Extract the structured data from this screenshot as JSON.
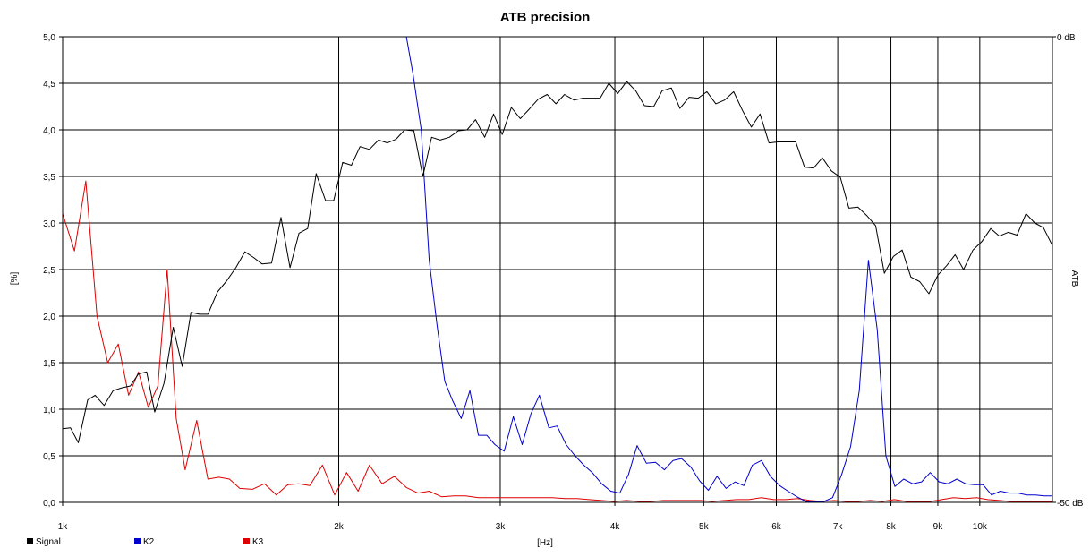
{
  "chart_data": {
    "type": "line",
    "title": "ATB precision",
    "xlabel": "[Hz]",
    "ylabel": "[%]",
    "y2label": "ATB",
    "x_scale": "log",
    "xlim": [
      1000,
      12000
    ],
    "ylim": [
      0,
      5
    ],
    "y2lim": [
      -50,
      0
    ],
    "y2_unit": "dB",
    "grid": true,
    "legend_position": "bottom-left",
    "x_ticks": [
      {
        "value": 1000,
        "label": "1k"
      },
      {
        "value": 2000,
        "label": "2k"
      },
      {
        "value": 3000,
        "label": "3k"
      },
      {
        "value": 4000,
        "label": "4k"
      },
      {
        "value": 5000,
        "label": "5k"
      },
      {
        "value": 6000,
        "label": "6k"
      },
      {
        "value": 7000,
        "label": "7k"
      },
      {
        "value": 8000,
        "label": "8k"
      },
      {
        "value": 9000,
        "label": "9k"
      },
      {
        "value": 10000,
        "label": "10k"
      }
    ],
    "y_ticks": [
      {
        "value": 5.0,
        "label": "5,0"
      },
      {
        "value": 4.5,
        "label": "4,5"
      },
      {
        "value": 4.0,
        "label": "4,0"
      },
      {
        "value": 3.5,
        "label": "3,5"
      },
      {
        "value": 3.0,
        "label": "3,0"
      },
      {
        "value": 2.5,
        "label": "2,5"
      },
      {
        "value": 2.0,
        "label": "2,0"
      },
      {
        "value": 1.5,
        "label": "1,5"
      },
      {
        "value": 1.0,
        "label": "1,0"
      },
      {
        "value": 0.5,
        "label": "0,5"
      },
      {
        "value": 0.0,
        "label": "0,0"
      }
    ],
    "y2_ticks": [
      {
        "value": 0,
        "label": "0 dB"
      },
      {
        "value": -50,
        "label": "-50 dB"
      }
    ],
    "series": [
      {
        "name": "Signal",
        "color": "#000000",
        "axis": "right",
        "x": [
          1000,
          1020,
          1040,
          1065,
          1085,
          1110,
          1135,
          1160,
          1185,
          1210,
          1235,
          1260,
          1290,
          1320,
          1350,
          1380,
          1410,
          1440,
          1475,
          1510,
          1545,
          1580,
          1615,
          1650,
          1690,
          1730,
          1770,
          1810,
          1850,
          1890,
          1935,
          1975,
          2020,
          2065,
          2110,
          2160,
          2210,
          2260,
          2310,
          2360,
          2415,
          2470,
          2525,
          2580,
          2640,
          2700,
          2760,
          2820,
          2885,
          2950,
          3015,
          3085,
          3155,
          3225,
          3300,
          3375,
          3450,
          3525,
          3610,
          3690,
          3770,
          3855,
          3940,
          4030,
          4120,
          4215,
          4310,
          4410,
          4505,
          4610,
          4710,
          4820,
          4930,
          5040,
          5155,
          5270,
          5390,
          5510,
          5635,
          5760,
          5890,
          6025,
          6160,
          6300,
          6440,
          6590,
          6735,
          6890,
          7045,
          7200,
          7365,
          7530,
          7700,
          7870,
          8050,
          8230,
          8410,
          8600,
          8800,
          9000,
          9200,
          9400,
          9600,
          9830,
          10050,
          10280,
          10500,
          10740,
          10980,
          11230,
          11480,
          11730,
          11980
        ],
        "y": [
          -42.1,
          -42.0,
          -43.6,
          -39.0,
          -38.5,
          -39.6,
          -38.0,
          -37.7,
          -37.5,
          -36.2,
          -36.0,
          -40.3,
          -37.2,
          -31.2,
          -35.4,
          -29.6,
          -29.8,
          -29.8,
          -27.4,
          -26.2,
          -24.8,
          -23.1,
          -23.7,
          -24.4,
          -24.3,
          -19.4,
          -24.8,
          -21.1,
          -20.6,
          -14.7,
          -17.6,
          -17.6,
          -13.5,
          -13.8,
          -11.8,
          -12.1,
          -11.1,
          -11.4,
          -11.0,
          -10.0,
          -10.1,
          -15.0,
          -10.8,
          -11.1,
          -10.8,
          -10.1,
          -10.0,
          -8.9,
          -10.8,
          -8.3,
          -10.5,
          -7.6,
          -8.8,
          -7.8,
          -6.7,
          -6.2,
          -7.2,
          -6.2,
          -6.8,
          -6.6,
          -6.6,
          -6.6,
          -5.0,
          -6.1,
          -4.8,
          -5.8,
          -7.4,
          -7.5,
          -5.8,
          -5.5,
          -7.7,
          -6.5,
          -6.6,
          -5.9,
          -7.2,
          -6.8,
          -5.9,
          -7.9,
          -9.7,
          -8.3,
          -11.4,
          -11.3,
          -11.3,
          -11.3,
          -14.0,
          -14.1,
          -13.0,
          -14.4,
          -15.1,
          -18.4,
          -18.3,
          -19.2,
          -20.3,
          -25.4,
          -23.6,
          -22.9,
          -25.8,
          -26.3,
          -27.6,
          -25.6,
          -24.6,
          -23.4,
          -25.0,
          -22.9,
          -22.0,
          -20.6,
          -21.4,
          -21.0,
          -21.3,
          -19.0,
          -20.0,
          -20.5,
          -22.3
        ]
      },
      {
        "name": "K2",
        "color": "#0000cc",
        "axis": "left",
        "x": [
          2370,
          2410,
          2460,
          2510,
          2560,
          2610,
          2660,
          2720,
          2780,
          2840,
          2900,
          2960,
          3030,
          3100,
          3170,
          3240,
          3310,
          3390,
          3460,
          3540,
          3620,
          3700,
          3780,
          3870,
          3960,
          4050,
          4140,
          4230,
          4330,
          4430,
          4530,
          4630,
          4730,
          4840,
          4950,
          5060,
          5170,
          5290,
          5410,
          5530,
          5650,
          5780,
          5910,
          6050,
          6180,
          6320,
          6460,
          6610,
          6760,
          6910,
          7070,
          7230,
          7390,
          7560,
          7730,
          7900,
          8080,
          8260,
          8450,
          8640,
          8830,
          9030,
          9230,
          9440,
          9650,
          9860,
          10080,
          10300,
          10530,
          10770,
          11010,
          11250,
          11500,
          11760,
          12000
        ],
        "y": [
          5.0,
          4.6,
          4.0,
          2.6,
          1.9,
          1.3,
          1.1,
          0.9,
          1.2,
          0.72,
          0.72,
          0.62,
          0.55,
          0.92,
          0.62,
          0.95,
          1.15,
          0.8,
          0.82,
          0.62,
          0.5,
          0.4,
          0.32,
          0.2,
          0.12,
          0.1,
          0.3,
          0.61,
          0.42,
          0.43,
          0.35,
          0.45,
          0.47,
          0.38,
          0.23,
          0.13,
          0.28,
          0.15,
          0.22,
          0.18,
          0.4,
          0.45,
          0.28,
          0.18,
          0.12,
          0.06,
          0.01,
          0.01,
          0.01,
          0.05,
          0.3,
          0.6,
          1.2,
          2.6,
          1.85,
          0.5,
          0.17,
          0.25,
          0.2,
          0.22,
          0.32,
          0.22,
          0.2,
          0.25,
          0.2,
          0.19,
          0.19,
          0.08,
          0.12,
          0.1,
          0.1,
          0.08,
          0.08,
          0.07,
          0.07
        ]
      },
      {
        "name": "K3",
        "color": "#dd0000",
        "axis": "left",
        "x": [
          1000,
          1030,
          1060,
          1090,
          1120,
          1150,
          1180,
          1210,
          1240,
          1270,
          1300,
          1330,
          1360,
          1400,
          1440,
          1480,
          1520,
          1560,
          1610,
          1660,
          1710,
          1760,
          1810,
          1860,
          1920,
          1980,
          2040,
          2100,
          2160,
          2230,
          2300,
          2370,
          2440,
          2510,
          2590,
          2670,
          2750,
          2840,
          2930,
          3020,
          3120,
          3220,
          3320,
          3420,
          3530,
          3640,
          3750,
          3870,
          3990,
          4120,
          4250,
          4380,
          4520,
          4660,
          4810,
          4960,
          5110,
          5270,
          5430,
          5600,
          5780,
          5960,
          6140,
          6330,
          6530,
          6730,
          6940,
          7150,
          7370,
          7600,
          7830,
          8070,
          8320,
          8570,
          8830,
          9090,
          9360,
          9640,
          9920,
          10200,
          10500,
          10800,
          11100,
          11400,
          11700,
          12000
        ],
        "y": [
          3.1,
          2.7,
          3.45,
          2.0,
          1.5,
          1.7,
          1.15,
          1.4,
          1.02,
          1.25,
          2.5,
          0.9,
          0.35,
          0.88,
          0.25,
          0.27,
          0.25,
          0.15,
          0.14,
          0.2,
          0.08,
          0.19,
          0.2,
          0.18,
          0.4,
          0.08,
          0.32,
          0.12,
          0.4,
          0.2,
          0.28,
          0.16,
          0.1,
          0.12,
          0.06,
          0.07,
          0.07,
          0.05,
          0.05,
          0.05,
          0.05,
          0.05,
          0.05,
          0.05,
          0.04,
          0.04,
          0.03,
          0.02,
          0.01,
          0.02,
          0.01,
          0.01,
          0.02,
          0.02,
          0.02,
          0.02,
          0.01,
          0.02,
          0.03,
          0.03,
          0.05,
          0.03,
          0.03,
          0.04,
          0.02,
          0.01,
          0.02,
          0.01,
          0.01,
          0.02,
          0.01,
          0.03,
          0.01,
          0.01,
          0.01,
          0.03,
          0.05,
          0.04,
          0.05,
          0.03,
          0.02,
          0.01,
          0.01,
          0.01,
          0.01,
          0.01
        ]
      }
    ]
  }
}
